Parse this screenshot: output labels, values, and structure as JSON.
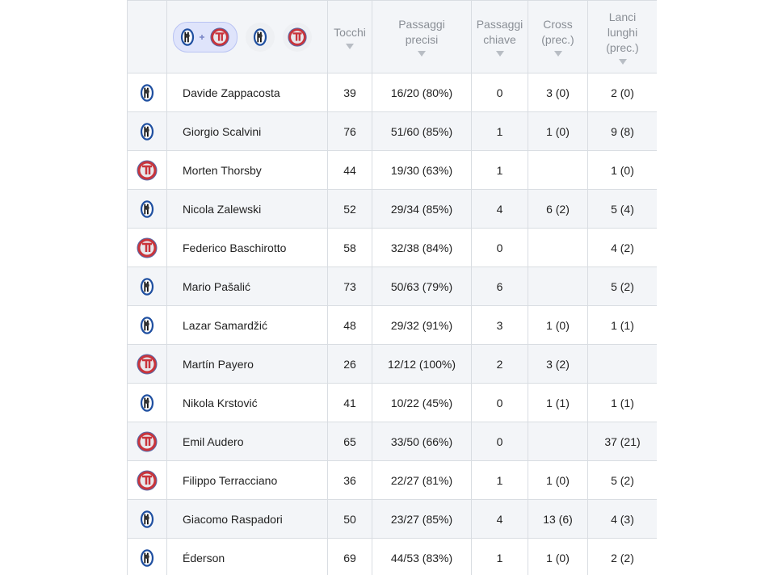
{
  "header": {
    "columns": [
      "Tocchi",
      "Passaggi precisi",
      "Passaggi chiave",
      "Cross (prec.)",
      "Lanci lunghi (prec.)"
    ]
  },
  "table": {
    "rows": [
      [
        "Davide Zappacosta",
        39,
        "16/20 (80%)",
        0,
        "3 (0)",
        "2 (0)"
      ],
      [
        "Giorgio Scalvini",
        76,
        "51/60 (85%)",
        1,
        "1 (0)",
        "9 (8)"
      ],
      [
        "Morten Thorsby",
        44,
        "19/30 (63%)",
        1,
        null,
        "1 (0)"
      ],
      [
        "Nicola Zalewski",
        52,
        "29/34 (85%)",
        4,
        "6 (2)",
        "5 (4)"
      ],
      [
        "Federico Baschirotto",
        58,
        "32/38 (84%)",
        0,
        null,
        "4 (2)"
      ],
      [
        "Mario Pašalić",
        73,
        "50/63 (79%)",
        6,
        null,
        "5 (2)"
      ],
      [
        "Lazar Samardžić",
        48,
        "29/32 (91%)",
        3,
        "1 (0)",
        "1 (1)"
      ],
      [
        "Martín Payero",
        26,
        "12/12 (100%)",
        2,
        "3 (2)",
        null
      ],
      [
        "Nikola Krstović",
        41,
        "10/22 (45%)",
        0,
        "1 (1)",
        "1 (1)"
      ],
      [
        "Emil Audero",
        65,
        "33/50 (66%)",
        0,
        null,
        "37 (21)"
      ],
      [
        "Filippo Terracciano",
        36,
        "22/27 (81%)",
        1,
        "1 (0)",
        "5 (2)"
      ],
      [
        "Giacomo Raspadori",
        50,
        "23/27 (85%)",
        4,
        "13 (6)",
        "4 (3)"
      ],
      [
        "Éderson",
        69,
        "44/53 (83%)",
        1,
        "1 (0)",
        "2 (2)"
      ]
    ]
  }
}
